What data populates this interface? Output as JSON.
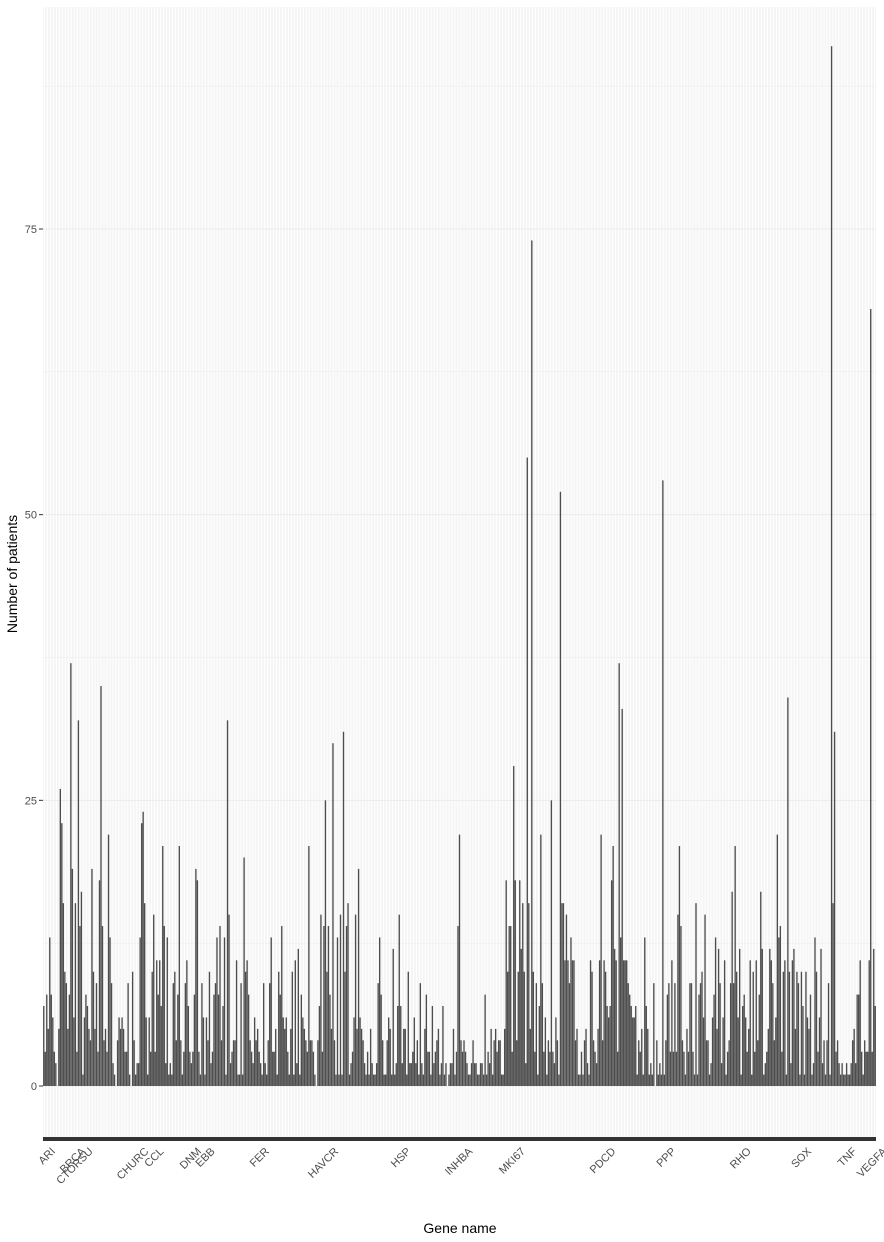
{
  "chart_data": {
    "type": "bar",
    "title": "",
    "xlabel": "Gene name",
    "ylabel": "Number of patients",
    "ylim": [
      0,
      94.5
    ],
    "yticks": [
      0,
      25,
      50,
      75
    ],
    "grid": true,
    "legend": "none",
    "bar_color": "#4d4d4d",
    "panel_color": "#ffffff",
    "grid_color": "#ebebeb",
    "note": "Approximately 580 genes; tick labels overlap heavily and are largely illegible. Only legible tick labels are listed with their category index.",
    "legible_xticks": [
      {
        "i": 8,
        "label": "ARI"
      },
      {
        "i": 28,
        "label": "BRCA"
      },
      {
        "i": 33,
        "label": "CTORSU"
      },
      {
        "i": 70,
        "label": "CHURC"
      },
      {
        "i": 80,
        "label": "CCL"
      },
      {
        "i": 105,
        "label": "DNM"
      },
      {
        "i": 114,
        "label": "EBB"
      },
      {
        "i": 150,
        "label": "FER"
      },
      {
        "i": 196,
        "label": "HAVCR"
      },
      {
        "i": 244,
        "label": "HSP"
      },
      {
        "i": 285,
        "label": "INHBA"
      },
      {
        "i": 320,
        "label": "MKI67"
      },
      {
        "i": 380,
        "label": "PDCD"
      },
      {
        "i": 420,
        "label": "PPP"
      },
      {
        "i": 470,
        "label": "RHO"
      },
      {
        "i": 510,
        "label": "SOX"
      },
      {
        "i": 540,
        "label": "TNF"
      },
      {
        "i": 560,
        "label": "VEGFA"
      }
    ],
    "values": [
      7,
      3,
      8,
      5,
      13,
      8,
      6,
      3,
      2,
      0,
      5,
      26,
      23,
      16,
      10,
      9,
      5,
      8,
      37,
      19,
      6,
      16,
      3,
      32,
      14,
      17,
      1,
      6,
      8,
      7,
      5,
      4,
      19,
      10,
      5,
      9,
      3,
      18,
      35,
      14,
      4,
      5,
      3,
      22,
      13,
      9,
      2,
      1,
      0,
      4,
      6,
      5,
      6,
      5,
      3,
      3,
      9,
      1,
      0,
      10,
      4,
      1,
      2,
      2,
      13,
      23,
      24,
      16,
      6,
      1,
      6,
      3,
      10,
      15,
      3,
      11,
      8,
      11,
      7,
      21,
      14,
      2,
      13,
      1,
      2,
      1,
      9,
      10,
      4,
      8,
      21,
      4,
      1,
      3,
      9,
      11,
      7,
      3,
      2,
      3,
      8,
      19,
      18,
      3,
      1,
      9,
      6,
      1,
      6,
      4,
      10,
      2,
      3,
      8,
      9,
      13,
      8,
      14,
      4,
      7,
      13,
      1,
      32,
      15,
      2,
      3,
      4,
      4,
      11,
      1,
      1,
      9,
      1,
      20,
      10,
      11,
      8,
      4,
      3,
      2,
      6,
      4,
      5,
      3,
      2,
      1,
      9,
      2,
      1,
      4,
      9,
      13,
      3,
      3,
      5,
      1,
      10,
      8,
      14,
      6,
      5,
      6,
      3,
      1,
      5,
      10,
      1,
      11,
      2,
      12,
      1,
      8,
      6,
      5,
      4,
      3,
      21,
      4,
      4,
      3,
      1,
      0,
      4,
      7,
      15,
      3,
      14,
      25,
      10,
      14,
      8,
      5,
      30,
      4,
      1,
      13,
      1,
      15,
      1,
      31,
      10,
      14,
      16,
      1,
      2,
      3,
      6,
      15,
      5,
      19,
      6,
      5,
      4,
      2,
      1,
      3,
      1,
      5,
      2,
      1,
      1,
      2,
      9,
      13,
      8,
      4,
      1,
      1,
      4,
      6,
      5,
      1,
      12,
      1,
      2,
      7,
      15,
      7,
      2,
      5,
      5,
      1,
      10,
      2,
      2,
      3,
      6,
      2,
      4,
      1,
      9,
      2,
      1,
      5,
      8,
      3,
      3,
      1,
      7,
      2,
      3,
      4,
      5,
      1,
      2,
      7,
      1,
      2,
      0,
      1,
      2,
      2,
      5,
      1,
      3,
      14,
      22,
      4,
      3,
      4,
      3,
      2,
      1,
      1,
      2,
      4,
      2,
      2,
      1,
      1,
      2,
      2,
      1,
      8,
      1,
      3,
      2,
      5,
      1,
      4,
      5,
      3,
      4,
      4,
      1,
      1,
      5,
      18,
      10,
      14,
      14,
      3,
      28,
      18,
      4,
      10,
      18,
      12,
      16,
      10,
      2,
      55,
      16,
      5,
      74,
      10,
      3,
      9,
      1,
      7,
      22,
      9,
      3,
      6,
      1,
      4,
      3,
      25,
      3,
      2,
      6,
      4,
      1,
      52,
      16,
      16,
      11,
      15,
      11,
      9,
      13,
      11,
      11,
      4,
      5,
      1,
      1,
      3,
      1,
      4,
      5,
      2,
      1,
      11,
      10,
      4,
      3,
      2,
      5,
      11,
      22,
      4,
      11,
      10,
      7,
      6,
      7,
      18,
      21,
      12,
      11,
      3,
      37,
      13,
      33,
      11,
      11,
      11,
      9,
      8,
      7,
      6,
      6,
      7,
      1,
      4,
      3,
      5,
      1,
      13,
      7,
      5,
      1,
      2,
      1,
      9,
      0,
      4,
      1,
      2,
      1,
      53,
      1,
      4,
      8,
      9,
      3,
      11,
      3,
      9,
      3,
      15,
      21,
      14,
      4,
      3,
      1,
      5,
      3,
      9,
      9,
      3,
      1,
      16,
      1,
      8,
      9,
      10,
      6,
      15,
      4,
      4,
      1,
      2,
      6,
      8,
      13,
      5,
      12,
      9,
      2,
      6,
      11,
      1,
      3,
      4,
      9,
      17,
      9,
      21,
      10,
      6,
      12,
      1,
      7,
      8,
      6,
      3,
      5,
      11,
      1,
      10,
      3,
      11,
      4,
      8,
      17,
      12,
      1,
      2,
      3,
      5,
      12,
      11,
      9,
      4,
      6,
      22,
      13,
      14,
      3,
      10,
      11,
      1,
      34,
      10,
      2,
      11,
      12,
      5,
      10,
      9,
      1,
      10,
      7,
      1,
      10,
      6,
      5,
      8,
      1,
      2,
      13,
      10,
      3,
      6,
      12,
      2,
      4,
      1,
      4,
      9,
      1,
      91,
      16,
      31,
      3,
      4,
      2,
      1,
      2,
      1,
      1,
      2,
      1,
      1,
      2,
      4,
      5,
      2,
      8,
      8,
      11,
      3,
      1,
      4,
      3,
      3,
      11,
      68,
      3,
      12,
      7
    ]
  }
}
